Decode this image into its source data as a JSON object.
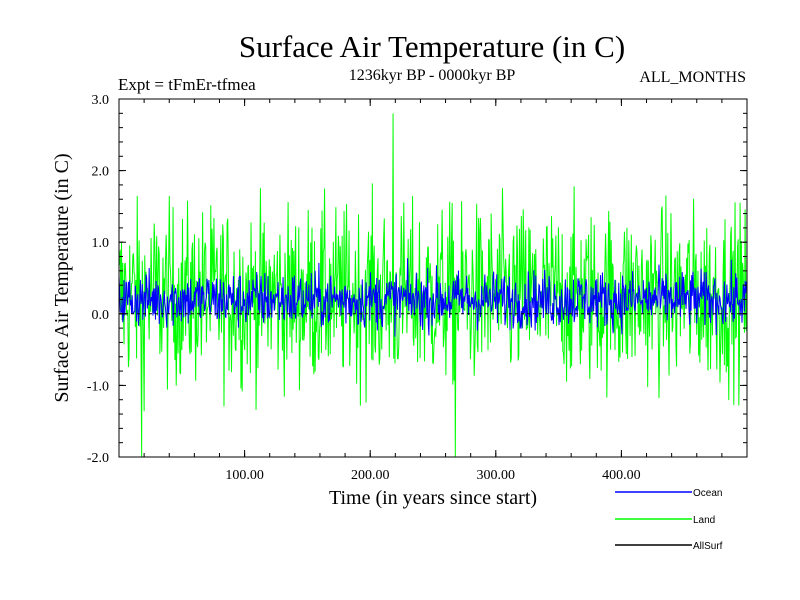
{
  "chart_data": {
    "type": "line",
    "title": "Surface Air Temperature (in C)",
    "subtitle_left": "Expt = tFmEr-tfmea",
    "subtitle_center": "1236kyr BP - 0000kyr BP",
    "subtitle_right": "ALL_MONTHS",
    "xlabel": "Time (in years since start)",
    "ylabel": "Surface Air Temperature (in C)",
    "xlim": [
      0,
      500
    ],
    "ylim": [
      -2.0,
      3.0
    ],
    "x_ticks": [
      {
        "value": 100,
        "label": "100.00"
      },
      {
        "value": 200,
        "label": "200.00"
      },
      {
        "value": 300,
        "label": "300.00"
      },
      {
        "value": 400,
        "label": "400.00"
      }
    ],
    "y_ticks": [
      {
        "value": 3.0,
        "label": "3.0"
      },
      {
        "value": 2.0,
        "label": "2.0"
      },
      {
        "value": 1.0,
        "label": "1.0"
      },
      {
        "value": 0.0,
        "label": "0.0"
      },
      {
        "value": -1.0,
        "label": "-1.0"
      },
      {
        "value": -2.0,
        "label": "-2.0"
      }
    ],
    "reference_line": 0.0,
    "series": [
      {
        "name": "Land",
        "color": "#00ff00",
        "mean": 0.25,
        "min": -2.0,
        "max": 2.8,
        "notable": [
          {
            "x": 18,
            "y": -2.0
          },
          {
            "x": 218,
            "y": 2.8
          },
          {
            "x": 268,
            "y": -2.0
          }
        ]
      },
      {
        "name": "Ocean",
        "color": "#0000ff",
        "mean": 0.2,
        "min": -0.6,
        "max": 1.0
      },
      {
        "name": "AllSurf",
        "color": "#000000",
        "mean": 0.0,
        "min": 0.0,
        "max": 0.0
      }
    ],
    "legend": [
      {
        "name": "Ocean",
        "color": "#0000ff"
      },
      {
        "name": "Land",
        "color": "#00ff00"
      },
      {
        "name": "AllSurf",
        "color": "#000000"
      }
    ],
    "legend_position": "bottom-right"
  }
}
